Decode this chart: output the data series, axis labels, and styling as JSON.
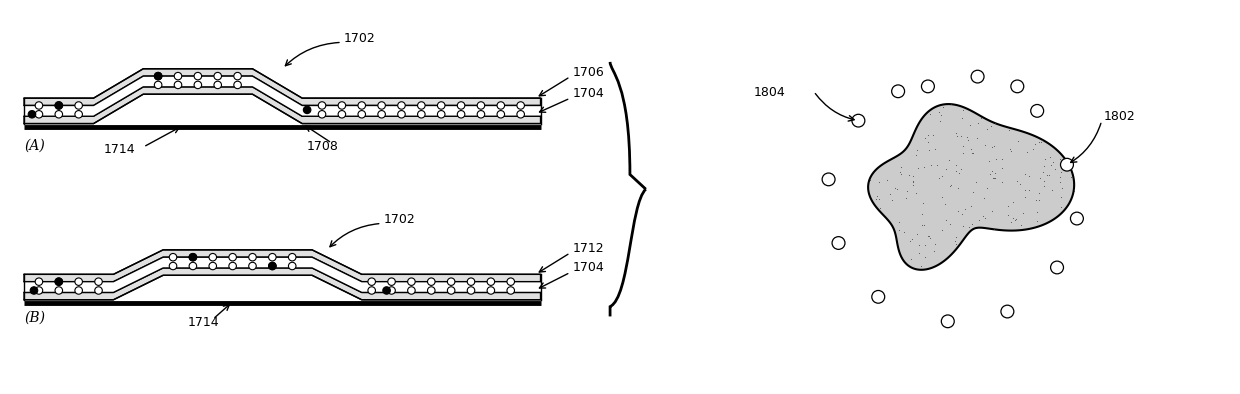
{
  "background_color": "#ffffff",
  "figure_width": 12.4,
  "figure_height": 3.94,
  "labels": {
    "A_label": "(A)",
    "B_label": "(B)",
    "1702_A": "1702",
    "1706": "1706",
    "1704_A": "1704",
    "1708": "1708",
    "1714_A": "1714",
    "1702_B": "1702",
    "1712": "1712",
    "1704_B": "1704",
    "1714_B": "1714",
    "1804": "1804",
    "1802": "1802"
  }
}
